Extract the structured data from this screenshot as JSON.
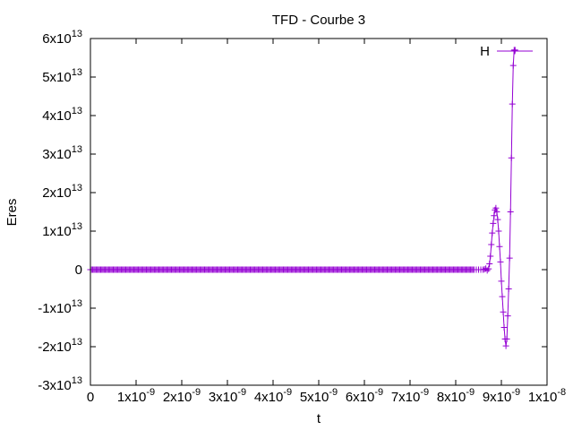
{
  "chart_data": {
    "type": "line",
    "title": "TFD - Courbe 3",
    "xlabel": "t",
    "ylabel": "Eres",
    "xlim": [
      0,
      1e-08
    ],
    "ylim": [
      -30000000000000.0,
      60000000000000.0
    ],
    "x_ticks": [
      {
        "value": 0,
        "mantissa": "0",
        "exponent": ""
      },
      {
        "value": 1e-09,
        "mantissa": "1x10",
        "exponent": "-9"
      },
      {
        "value": 2e-09,
        "mantissa": "2x10",
        "exponent": "-9"
      },
      {
        "value": 3e-09,
        "mantissa": "3x10",
        "exponent": "-9"
      },
      {
        "value": 4e-09,
        "mantissa": "4x10",
        "exponent": "-9"
      },
      {
        "value": 5e-09,
        "mantissa": "5x10",
        "exponent": "-9"
      },
      {
        "value": 6e-09,
        "mantissa": "6x10",
        "exponent": "-9"
      },
      {
        "value": 7e-09,
        "mantissa": "7x10",
        "exponent": "-9"
      },
      {
        "value": 8e-09,
        "mantissa": "8x10",
        "exponent": "-9"
      },
      {
        "value": 9e-09,
        "mantissa": "9x10",
        "exponent": "-9"
      },
      {
        "value": 1e-08,
        "mantissa": "1x10",
        "exponent": "-8"
      }
    ],
    "y_ticks": [
      {
        "value": -30000000000000.0,
        "mantissa": "-3x10",
        "exponent": "13"
      },
      {
        "value": -20000000000000.0,
        "mantissa": "-2x10",
        "exponent": "13"
      },
      {
        "value": -10000000000000.0,
        "mantissa": "-1x10",
        "exponent": "13"
      },
      {
        "value": 0,
        "mantissa": "0",
        "exponent": ""
      },
      {
        "value": 10000000000000.0,
        "mantissa": "1x10",
        "exponent": "13"
      },
      {
        "value": 20000000000000.0,
        "mantissa": "2x10",
        "exponent": "13"
      },
      {
        "value": 30000000000000.0,
        "mantissa": "3x10",
        "exponent": "13"
      },
      {
        "value": 40000000000000.0,
        "mantissa": "4x10",
        "exponent": "13"
      },
      {
        "value": 50000000000000.0,
        "mantissa": "5x10",
        "exponent": "13"
      },
      {
        "value": 60000000000000.0,
        "mantissa": "6x10",
        "exponent": "13"
      }
    ],
    "grid": false,
    "legend_position": "top-right",
    "series": [
      {
        "name": "H",
        "color": "#9400d3",
        "marker": "plus",
        "flat_region": {
          "x_start": 0,
          "x_end": 8.4e-09,
          "y": 0,
          "step": 2.5e-11
        },
        "x": [
          8.4e-09,
          8.45e-09,
          8.5e-09,
          8.55e-09,
          8.6e-09,
          8.63e-09,
          8.66e-09,
          8.69e-09,
          8.72e-09,
          8.74e-09,
          8.76e-09,
          8.78e-09,
          8.8e-09,
          8.82e-09,
          8.84e-09,
          8.86e-09,
          8.88e-09,
          8.9e-09,
          8.92e-09,
          8.94e-09,
          8.96e-09,
          8.98e-09,
          9e-09,
          9.02e-09,
          9.04e-09,
          9.06e-09,
          9.08e-09,
          9.1e-09,
          9.12e-09,
          9.14e-09,
          9.16e-09,
          9.18e-09,
          9.2e-09,
          9.22e-09,
          9.24e-09,
          9.26e-09,
          9.28e-09,
          9.3e-09
        ],
        "y": [
          0,
          0,
          0,
          0,
          0,
          100000000000.0,
          300000000000.0,
          -200000000000.0,
          200000000000.0,
          1500000000000.0,
          3500000000000.0,
          6500000000000.0,
          9500000000000.0,
          12000000000000.0,
          14000000000000.0,
          15500000000000.0,
          16000000000000.0,
          15000000000000.0,
          13000000000000.0,
          10000000000000.0,
          6000000000000.0,
          2000000000000.0,
          -3000000000000.0,
          -7000000000000.0,
          -11000000000000.0,
          -15000000000000.0,
          -18000000000000.0,
          -19800000000000.0,
          -18000000000000.0,
          -12000000000000.0,
          -5000000000000.0,
          3000000000000.0,
          15000000000000.0,
          29000000000000.0,
          43000000000000.0,
          53000000000000.0,
          57000000000000.0,
          57000000000000.0
        ]
      }
    ]
  }
}
